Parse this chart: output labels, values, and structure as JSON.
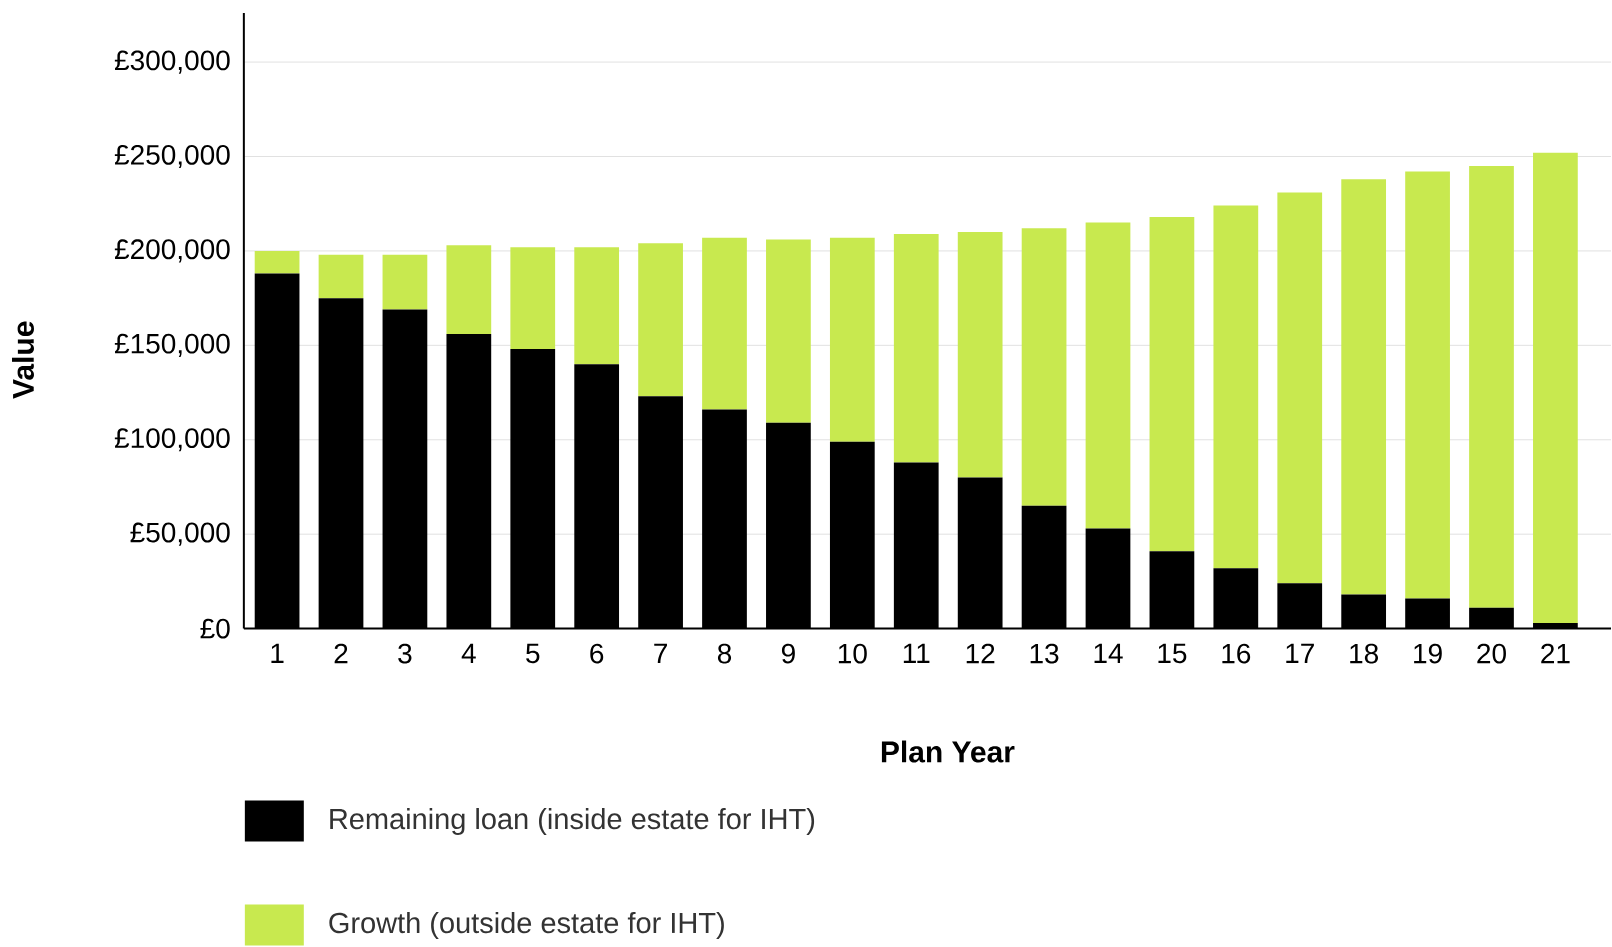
{
  "chart_data": {
    "type": "bar",
    "stacked": true,
    "xlabel": "Plan Year",
    "ylabel": "Value",
    "categories": [
      "1",
      "2",
      "3",
      "4",
      "5",
      "6",
      "7",
      "8",
      "9",
      "10",
      "11",
      "12",
      "13",
      "14",
      "15",
      "16",
      "17",
      "18",
      "19",
      "20",
      "21"
    ],
    "series": [
      {
        "name": "Remaining loan (inside estate for IHT)",
        "color": "#000000",
        "values": [
          188000,
          175000,
          169000,
          156000,
          148000,
          140000,
          123000,
          116000,
          109000,
          99000,
          88000,
          80000,
          65000,
          53000,
          41000,
          32000,
          24000,
          18000,
          16000,
          11000,
          3000
        ]
      },
      {
        "name": "Growth (outside estate for IHT)",
        "color": "#c8e94f",
        "values": [
          12000,
          23000,
          29000,
          47000,
          54000,
          62000,
          81000,
          91000,
          97000,
          108000,
          121000,
          130000,
          147000,
          162000,
          177000,
          192000,
          207000,
          220000,
          226000,
          234000,
          249000
        ]
      }
    ],
    "ylim": [
      0,
      326000
    ],
    "yticks": [
      {
        "value": 0,
        "label": "£0"
      },
      {
        "value": 50000,
        "label": "£50,000"
      },
      {
        "value": 100000,
        "label": "£100,000"
      },
      {
        "value": 150000,
        "label": "£150,000"
      },
      {
        "value": 200000,
        "label": "£200,000"
      },
      {
        "value": 250000,
        "label": "£250,000"
      },
      {
        "value": 300000,
        "label": "£300,000"
      }
    ],
    "grid": "y",
    "legend": "bottom"
  }
}
